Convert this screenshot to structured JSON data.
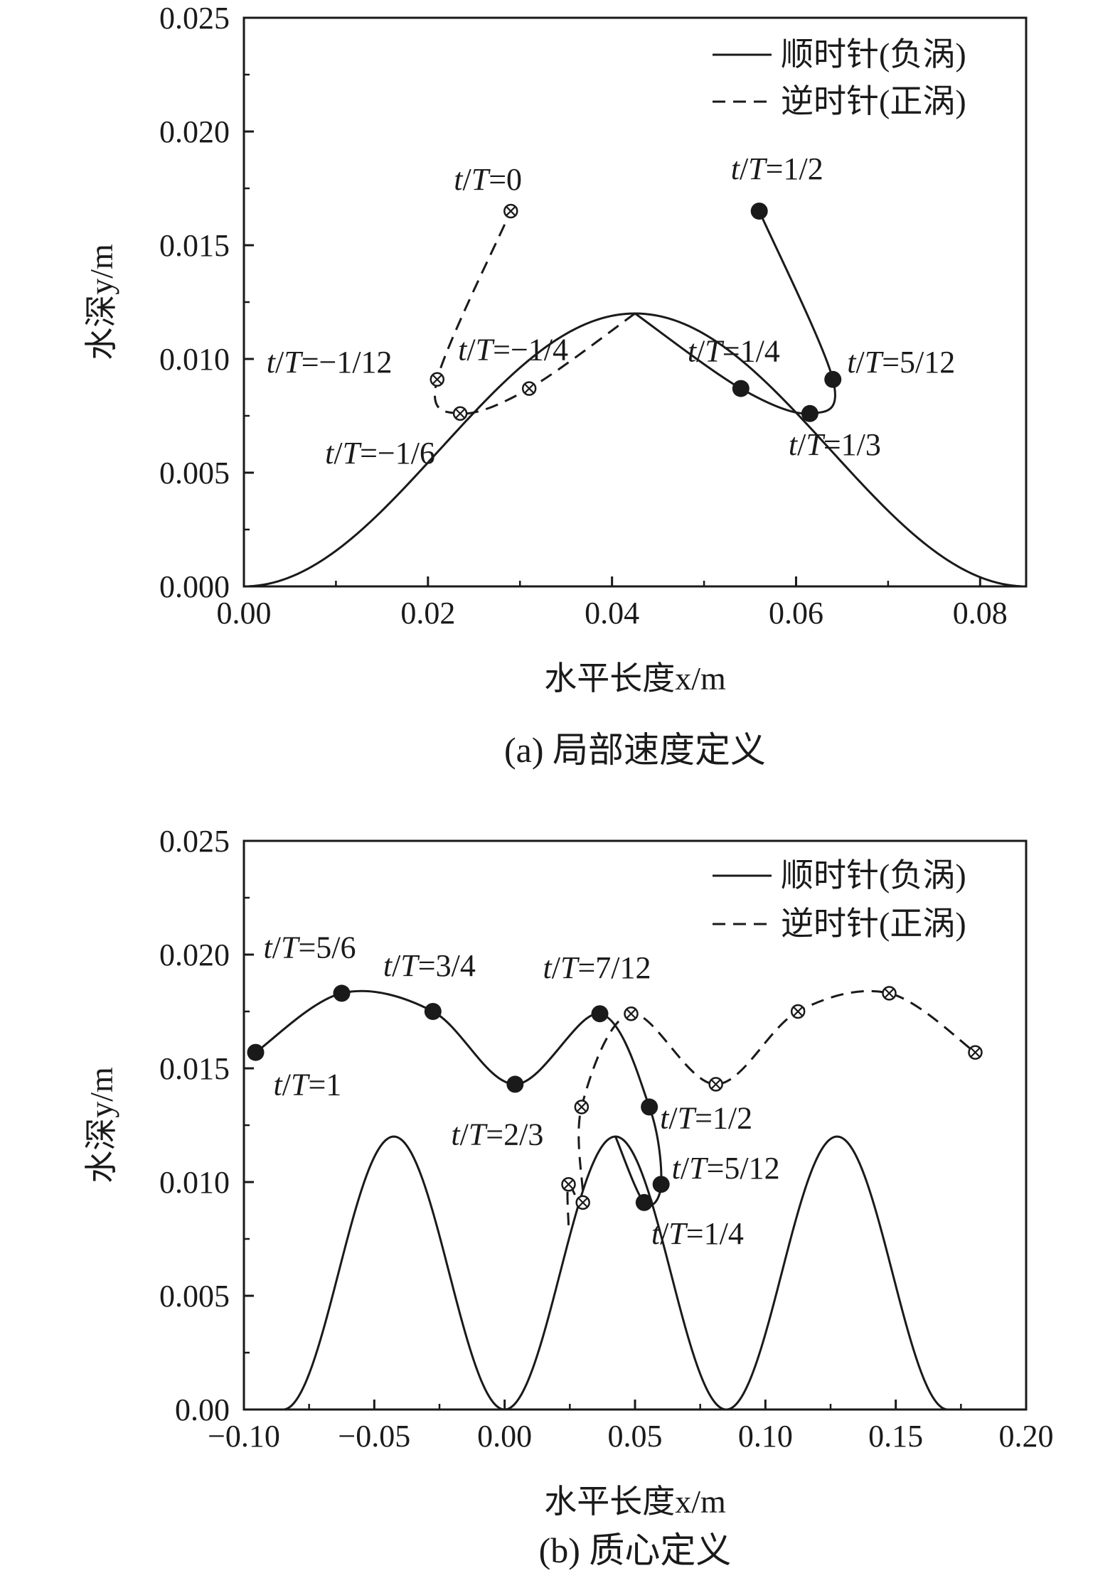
{
  "chart_data": [
    {
      "type": "line",
      "caption": "(a) 局部速度定义",
      "xlabel": "水平长度x/m",
      "ylabel": "水深y/m",
      "xlim": [
        0.0,
        0.085
      ],
      "ylim": [
        0.0,
        0.025
      ],
      "xticks": [
        "0.00",
        "0.02",
        "0.04",
        "0.06",
        "0.08"
      ],
      "xtick_values": [
        0.0,
        0.02,
        0.04,
        0.06,
        0.08
      ],
      "yticks": [
        "0.000",
        "0.005",
        "0.010",
        "0.015",
        "0.020",
        "0.025"
      ],
      "ytick_values": [
        0.0,
        0.005,
        0.01,
        0.015,
        0.02,
        0.025
      ],
      "grid": false,
      "legend_position": "top-right",
      "legend": [
        {
          "label": "顺时针(负涡)",
          "style": "solid"
        },
        {
          "label": "逆时针(正涡)",
          "style": "dashed"
        }
      ],
      "bump": {
        "center": 0.0425,
        "height": 0.012,
        "half_width": 0.0425,
        "periods": 1
      },
      "series": [
        {
          "name": "顺时针(负涡)",
          "style": "solid",
          "marker": "filled-circle",
          "points": [
            {
              "x": 0.0425,
              "y": 0.012,
              "marker": false
            },
            {
              "x": 0.054,
              "y": 0.0087,
              "label": "t/T=1/4"
            },
            {
              "x": 0.0615,
              "y": 0.0076,
              "label": "t/T=1/3"
            },
            {
              "x": 0.064,
              "y": 0.0091,
              "label": "t/T=5/12"
            },
            {
              "x": 0.056,
              "y": 0.0165,
              "label": "t/T=1/2"
            }
          ]
        },
        {
          "name": "逆时针(正涡)",
          "style": "dashed",
          "marker": "crossed-circle",
          "points": [
            {
              "x": 0.0425,
              "y": 0.012,
              "marker": false
            },
            {
              "x": 0.031,
              "y": 0.0087,
              "label": "t/T=−1/4"
            },
            {
              "x": 0.0235,
              "y": 0.0076,
              "label": "t/T=−1/6"
            },
            {
              "x": 0.021,
              "y": 0.0091,
              "label": "t/T=−1/12"
            },
            {
              "x": 0.029,
              "y": 0.0165,
              "label": "t/T=0"
            }
          ]
        }
      ]
    },
    {
      "type": "line",
      "caption": "(b) 质心定义",
      "xlabel": "水平长度x/m",
      "ylabel": "水深y/m",
      "xlim": [
        -0.1,
        0.2
      ],
      "ylim": [
        0.0,
        0.025
      ],
      "xticks": [
        "−0.10",
        "−0.05",
        "0.00",
        "0.05",
        "0.10",
        "0.15",
        "0.20"
      ],
      "xtick_values": [
        -0.1,
        -0.05,
        0.0,
        0.05,
        0.1,
        0.15,
        0.2
      ],
      "yticks": [
        "0.00",
        "0.005",
        "0.010",
        "0.015",
        "0.020",
        "0.025"
      ],
      "ytick_values": [
        0.0,
        0.005,
        0.01,
        0.015,
        0.02,
        0.025
      ],
      "grid": false,
      "legend_position": "top-right",
      "legend": [
        {
          "label": "顺时针(负涡)",
          "style": "solid"
        },
        {
          "label": "逆时针(正涡)",
          "style": "dashed"
        }
      ],
      "bump": {
        "center": -0.0425,
        "height": 0.012,
        "half_width": 0.0425,
        "periods": 3,
        "period": 0.085
      },
      "series": [
        {
          "name": "顺时针(负涡)",
          "style": "solid",
          "marker": "filled-circle",
          "points": [
            {
              "x": 0.0425,
              "y": 0.012,
              "marker": false
            },
            {
              "x": 0.0535,
              "y": 0.0091,
              "label": "t/T=1/4"
            },
            {
              "x": 0.06,
              "y": 0.0099,
              "label": "t/T=5/12"
            },
            {
              "x": 0.0555,
              "y": 0.0133,
              "label": "t/T=1/2"
            },
            {
              "x": 0.0365,
              "y": 0.0174,
              "label": "t/T=7/12"
            },
            {
              "x": 0.004,
              "y": 0.0143,
              "label": "t/T=2/3"
            },
            {
              "x": -0.0275,
              "y": 0.0175,
              "label": "t/T=3/4"
            },
            {
              "x": -0.0625,
              "y": 0.0183,
              "label": "t/T=5/6"
            },
            {
              "x": -0.0955,
              "y": 0.0157,
              "label": "t/T=1"
            }
          ]
        },
        {
          "name": "逆时针(正涡)",
          "style": "dashed",
          "marker": "crossed-circle",
          "points": [
            {
              "x": 0.0245,
              "y": 0.0081,
              "marker": false
            },
            {
              "x": 0.0245,
              "y": 0.0099
            },
            {
              "x": 0.03,
              "y": 0.0091
            },
            {
              "x": 0.0295,
              "y": 0.0133
            },
            {
              "x": 0.0485,
              "y": 0.0174
            },
            {
              "x": 0.081,
              "y": 0.0143
            },
            {
              "x": 0.1125,
              "y": 0.0175
            },
            {
              "x": 0.1475,
              "y": 0.0183
            },
            {
              "x": 0.1805,
              "y": 0.0157
            }
          ]
        }
      ]
    }
  ]
}
